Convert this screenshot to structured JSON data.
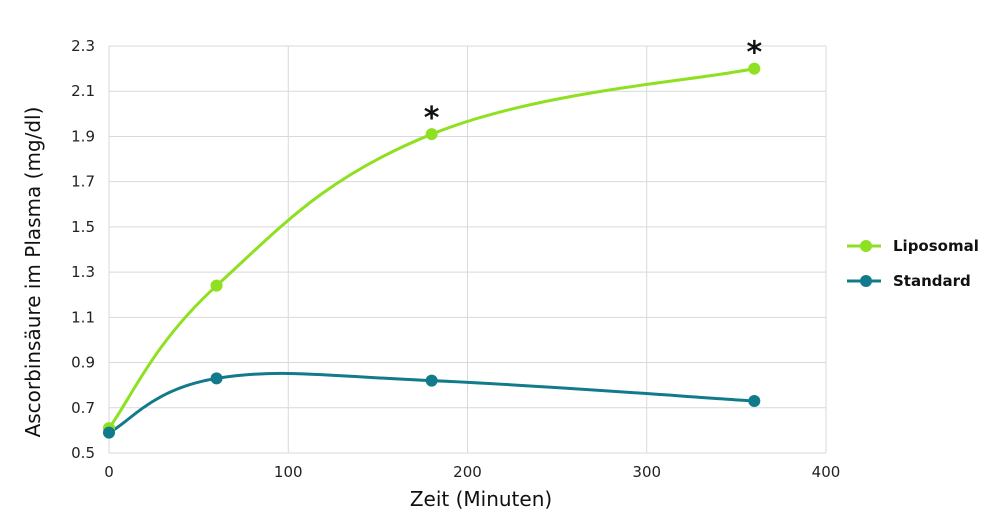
{
  "chart_data": {
    "type": "line",
    "title": "",
    "xlabel": "Zeit (Minuten)",
    "ylabel": "Ascorbinsäure im Plasma (mg/dl)",
    "xlim": [
      0,
      400
    ],
    "ylim": [
      0.5,
      2.3
    ],
    "x_ticks": [
      0,
      100,
      200,
      300,
      400
    ],
    "y_ticks": [
      0.5,
      0.7,
      0.9,
      1.1,
      1.3,
      1.5,
      1.7,
      1.9,
      2.1,
      2.3
    ],
    "grid": true,
    "legend_position": "right",
    "series": [
      {
        "name": "Liposomal",
        "color": "#8fe021",
        "x": [
          0,
          60,
          180,
          360
        ],
        "y": [
          0.61,
          1.24,
          1.91,
          2.2
        ]
      },
      {
        "name": "Standard",
        "color": "#117a8b",
        "x": [
          0,
          60,
          180,
          360
        ],
        "y": [
          0.59,
          0.83,
          0.82,
          0.73
        ]
      }
    ],
    "annotations": [
      {
        "text": "*",
        "x": 180,
        "y": 1.91
      },
      {
        "text": "*",
        "x": 360,
        "y": 2.2
      }
    ]
  }
}
